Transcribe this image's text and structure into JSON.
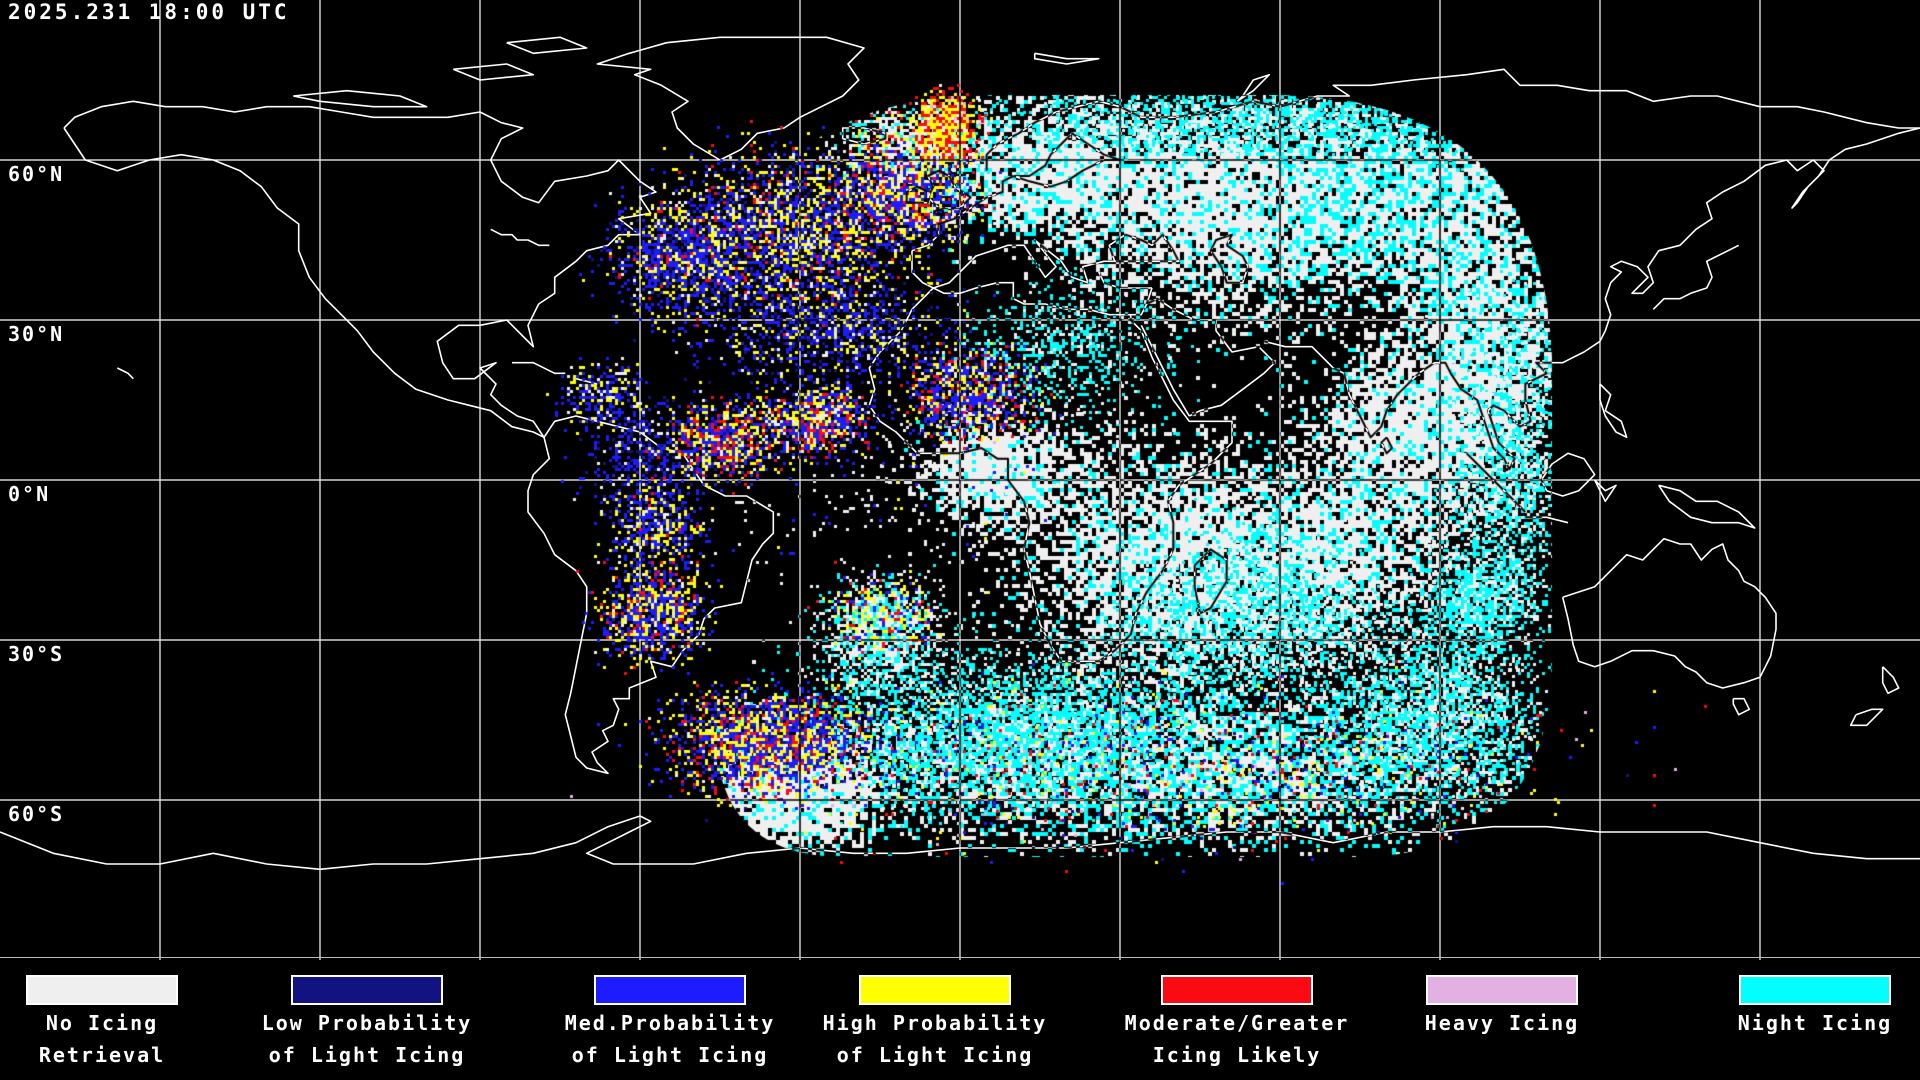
{
  "header": {
    "timestamp": "2025.231 18:00 UTC"
  },
  "map": {
    "grid_spacing_deg": 30,
    "lat_labels": [
      {
        "text": "60°N"
      },
      {
        "text": "30°N"
      },
      {
        "text": "0°N"
      },
      {
        "text": "30°S"
      },
      {
        "text": "60°S"
      }
    ]
  },
  "legend": {
    "entries": [
      {
        "key": "white",
        "color": "#efefef",
        "label_lines": [
          "No Icing",
          "Retrieval"
        ]
      },
      {
        "key": "navy",
        "color": "#121280",
        "label_lines": [
          "Low Probability",
          "of Light Icing"
        ]
      },
      {
        "key": "blue",
        "color": "#1c1cff",
        "label_lines": [
          "Med.Probability",
          "of Light Icing"
        ]
      },
      {
        "key": "yellow",
        "color": "#ffff00",
        "label_lines": [
          "High Probability",
          "of Light Icing"
        ]
      },
      {
        "key": "red",
        "color": "#fa0a12",
        "label_lines": [
          "Moderate/Greater",
          "Icing Likely"
        ]
      },
      {
        "key": "plum",
        "color": "#e3b0e3",
        "label_lines": [
          "Heavy Icing",
          ""
        ]
      },
      {
        "key": "cyan",
        "color": "#00ffff",
        "label_lines": [
          "Night Icing",
          ""
        ]
      }
    ]
  }
}
